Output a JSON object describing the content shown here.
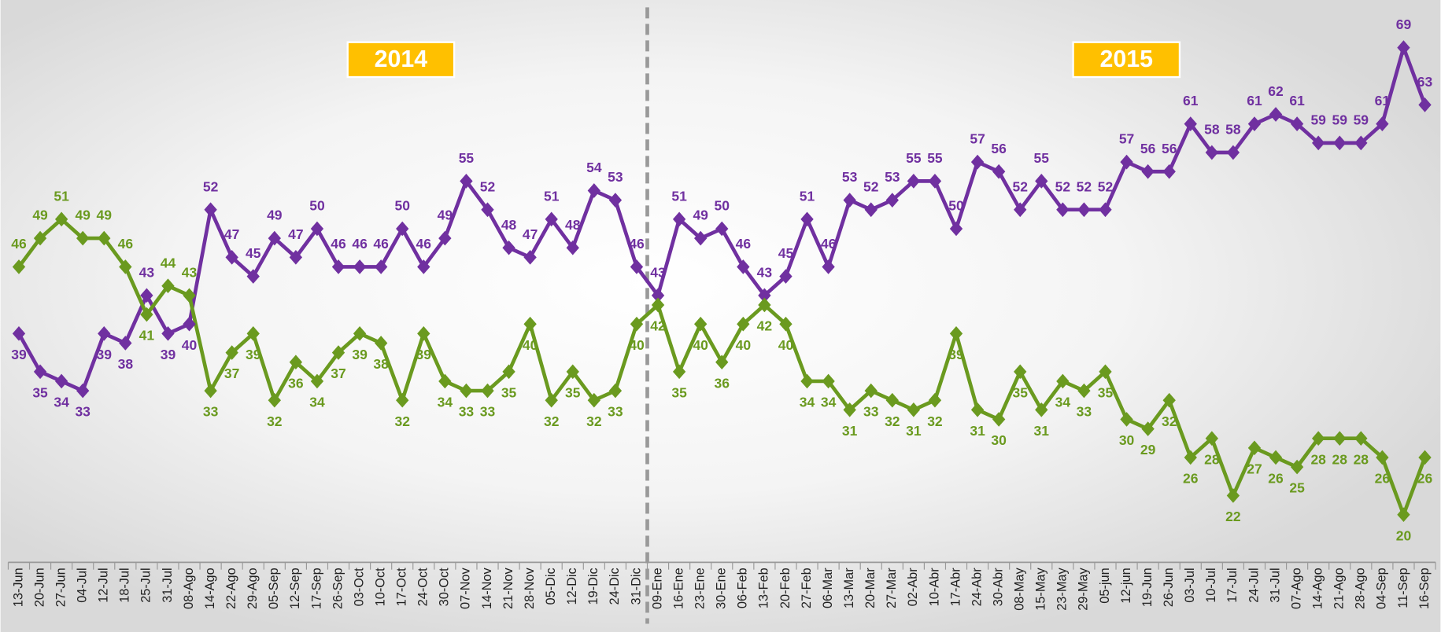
{
  "chart_data": {
    "type": "line",
    "annotations": [
      {
        "text": "2014"
      },
      {
        "text": "2015"
      }
    ],
    "categories": [
      "13-Jun",
      "20-Jun",
      "27-Jun",
      "04-Jul",
      "12-Jul",
      "18-Jul",
      "25-Jul",
      "31-Jul",
      "08-Ago",
      "14-Ago",
      "22-Ago",
      "29-Ago",
      "05-Sep",
      "12-Sep",
      "17-Sep",
      "26-Sep",
      "03-Oct",
      "10-Oct",
      "17-Oct",
      "24-Oct",
      "30-Oct",
      "07-Nov",
      "14-Nov",
      "21-Nov",
      "28-Nov",
      "05-Dic",
      "12-Dic",
      "19-Dic",
      "24-Dic",
      "31-Dic",
      "09-Ene",
      "16-Ene",
      "23-Ene",
      "30-Ene",
      "06-Feb",
      "13-Feb",
      "20-Feb",
      "27-Feb",
      "06-Mar",
      "13-Mar",
      "20-Mar",
      "27-Mar",
      "02-Abr",
      "10-Abr",
      "17-Abr",
      "24-Abr",
      "30-Abr",
      "08-May",
      "15-May",
      "23-May",
      "29-May",
      "05-jun",
      "12-jun",
      "19-Jun",
      "26-Jun",
      "03-Jul",
      "10-Jul",
      "17-Jul",
      "24-Jul",
      "31-Jul",
      "07-Ago",
      "14-Ago",
      "21-Ago",
      "28-Ago",
      "04-Sep",
      "11-Sep",
      "16-Sep"
    ],
    "series": [
      {
        "color": "#7030a0",
        "values": [
          39,
          35,
          34,
          33,
          39,
          38,
          43,
          39,
          40,
          52,
          47,
          45,
          49,
          47,
          50,
          46,
          46,
          46,
          50,
          46,
          49,
          55,
          52,
          48,
          47,
          51,
          48,
          54,
          53,
          46,
          43,
          51,
          49,
          50,
          46,
          43,
          45,
          51,
          46,
          53,
          52,
          53,
          55,
          55,
          50,
          57,
          56,
          52,
          55,
          52,
          52,
          52,
          57,
          56,
          56,
          61,
          58,
          58,
          61,
          62,
          61,
          59,
          59,
          59,
          61,
          69,
          63
        ]
      },
      {
        "color": "#6a9a1f",
        "values": [
          46,
          49,
          51,
          49,
          49,
          46,
          41,
          44,
          43,
          33,
          37,
          39,
          32,
          36,
          34,
          37,
          39,
          38,
          32,
          39,
          34,
          33,
          33,
          35,
          40,
          32,
          35,
          32,
          33,
          40,
          42,
          35,
          40,
          36,
          40,
          42,
          40,
          34,
          34,
          31,
          33,
          32,
          31,
          32,
          39,
          31,
          30,
          35,
          31,
          34,
          33,
          35,
          30,
          29,
          32,
          26,
          28,
          22,
          27,
          26,
          25,
          28,
          28,
          28,
          26,
          20,
          26
        ]
      }
    ],
    "ylim": [
      15,
      74
    ]
  }
}
